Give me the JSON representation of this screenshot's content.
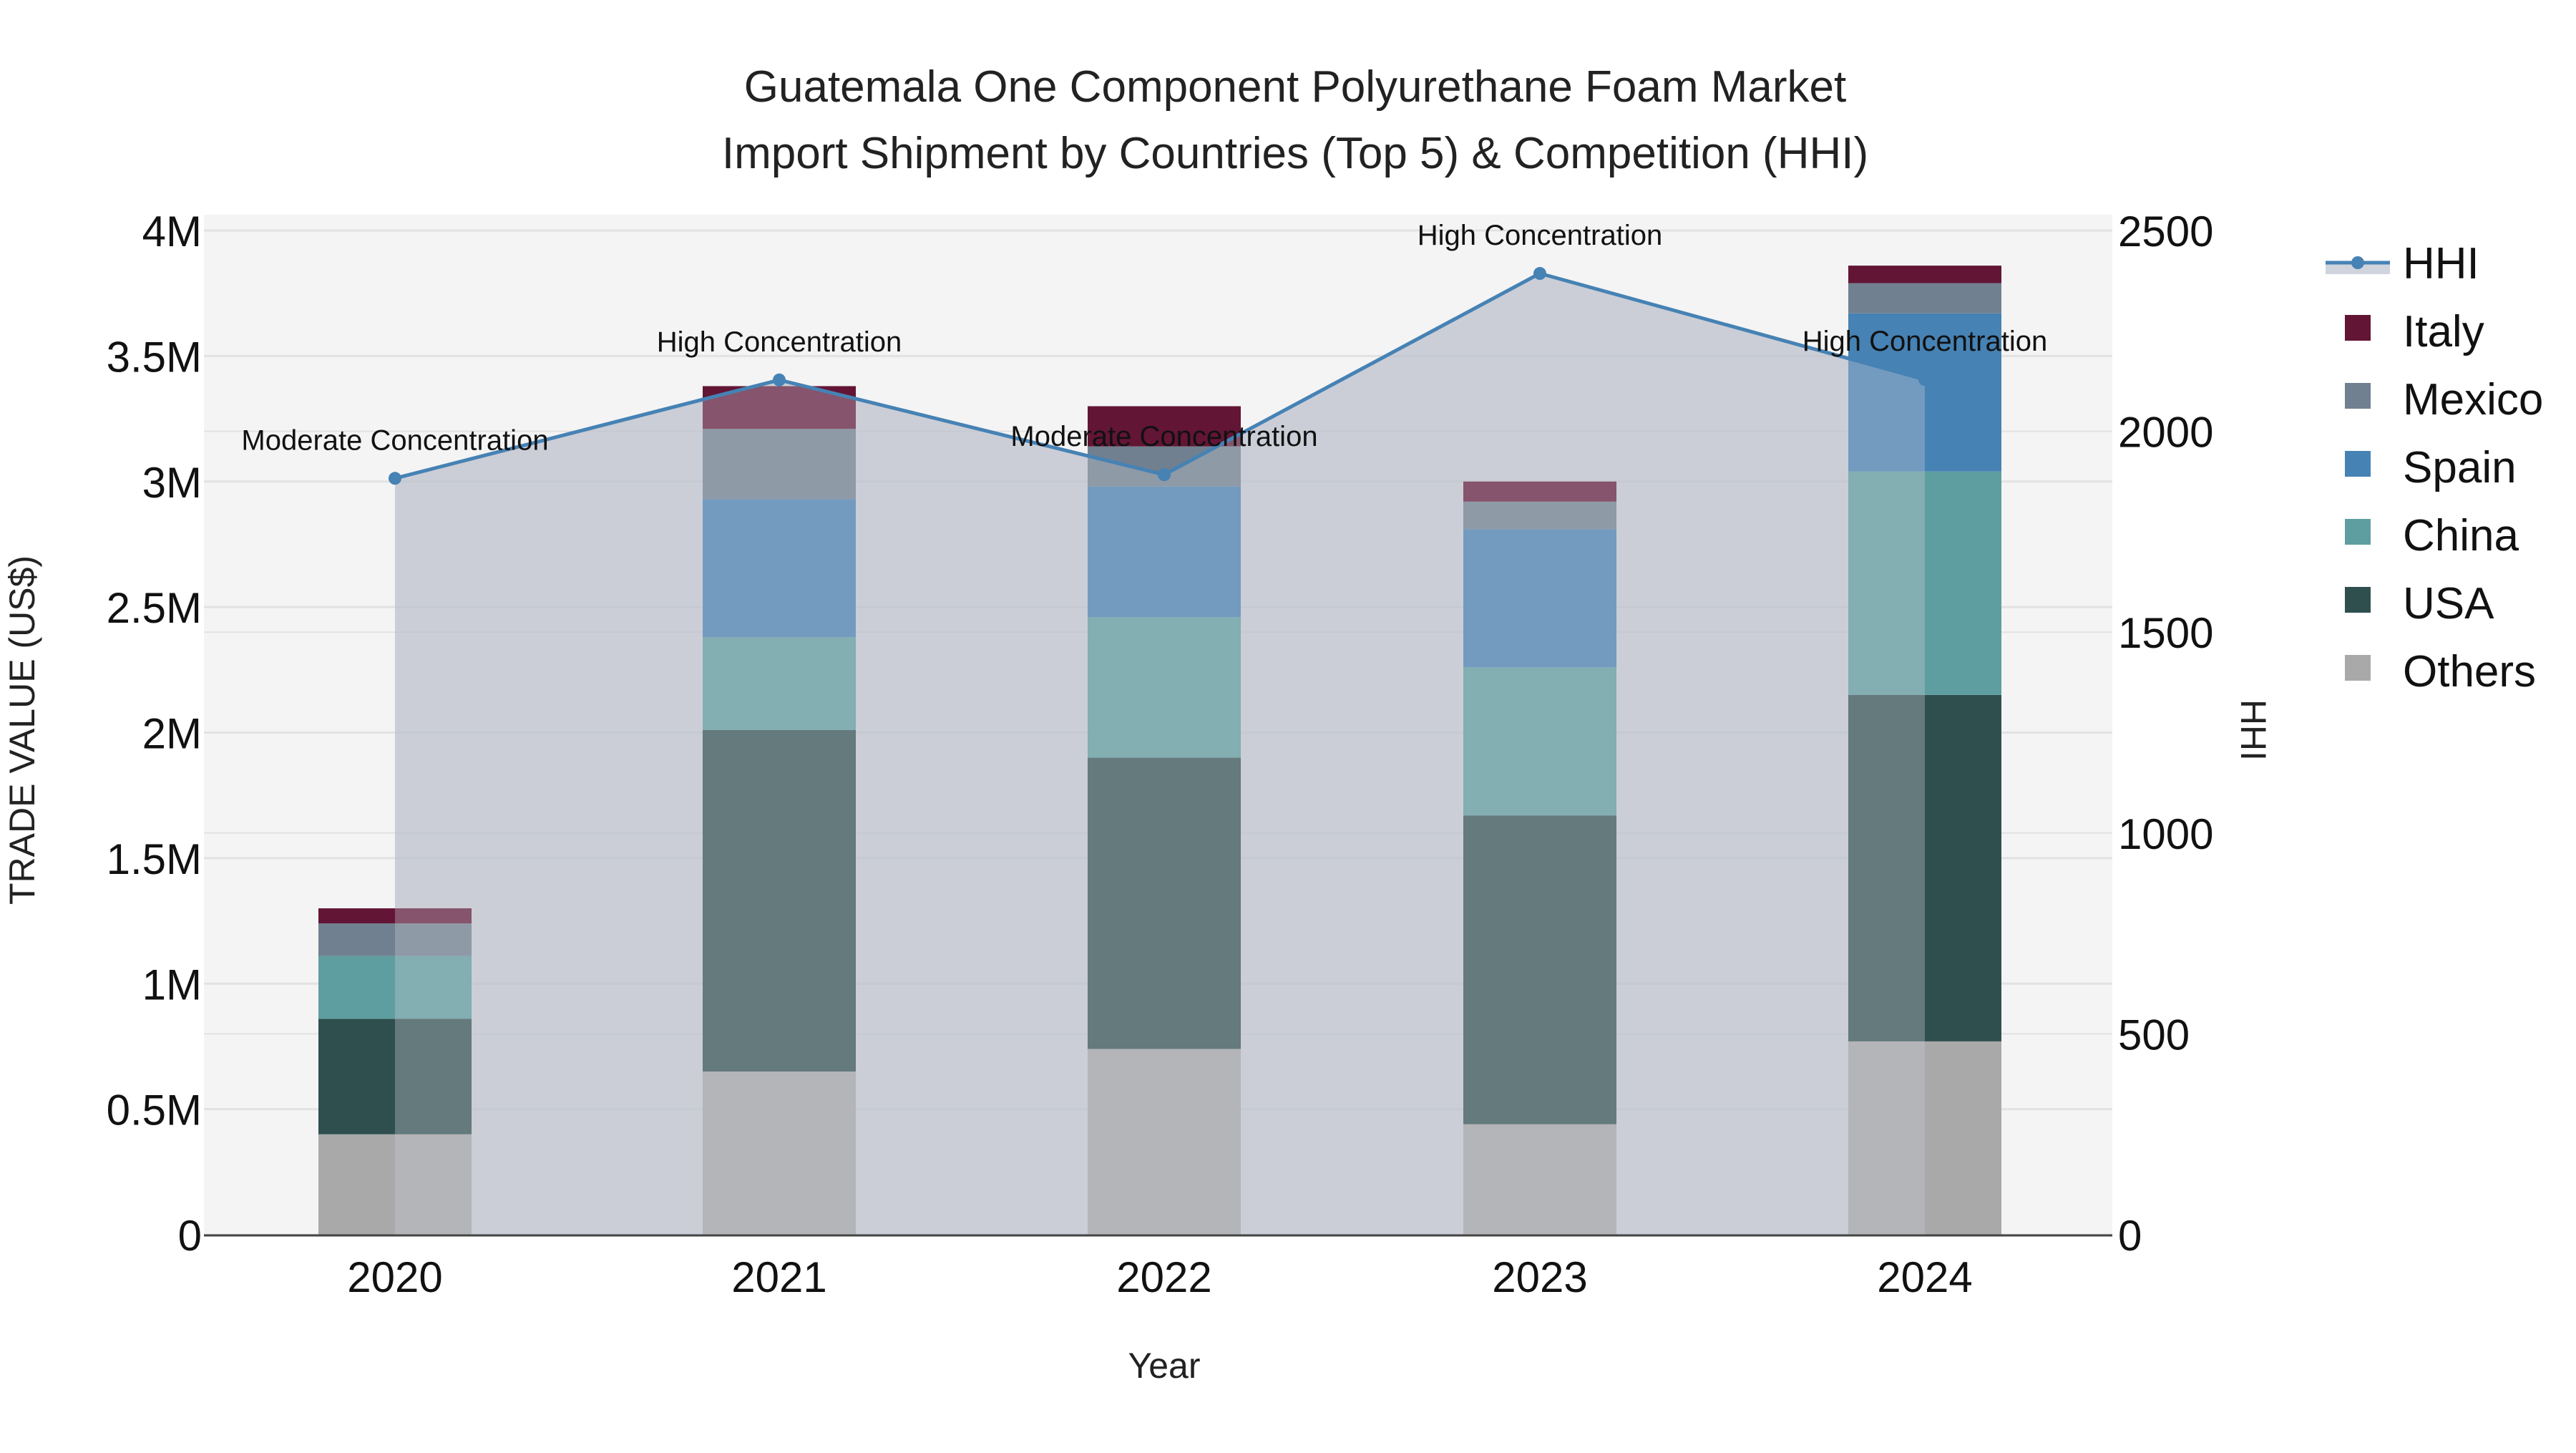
{
  "title": {
    "line1": "Guatemala One Component Polyurethane Foam Market",
    "line2": "Import Shipment by Countries (Top 5) & Competition (HHI)"
  },
  "axes": {
    "x_title": "Year",
    "y_left_title": "TRADE VALUE (US$)",
    "y_right_title": "HHI",
    "y_left_ticks": [
      "0",
      "0.5M",
      "1M",
      "1.5M",
      "2M",
      "2.5M",
      "3M",
      "3.5M",
      "4M"
    ],
    "y_right_ticks": [
      "0",
      "500",
      "1000",
      "1500",
      "2000",
      "2500"
    ],
    "x_ticks": [
      "2020",
      "2021",
      "2022",
      "2023",
      "2024"
    ]
  },
  "legend": {
    "items": [
      {
        "label": "HHI",
        "color": "#4682B4",
        "type": "line"
      },
      {
        "label": "Italy",
        "color": "#631535",
        "type": "box"
      },
      {
        "label": "Mexico",
        "color": "#708090",
        "type": "box"
      },
      {
        "label": "Spain",
        "color": "#4682B4",
        "type": "box"
      },
      {
        "label": "China",
        "color": "#5F9EA0",
        "type": "box"
      },
      {
        "label": "USA",
        "color": "#2F4F4F",
        "type": "box"
      },
      {
        "label": "Others",
        "color": "#A9A9A9",
        "type": "box"
      }
    ]
  },
  "annotations": [
    {
      "year": "2020",
      "text": "Moderate Concentration"
    },
    {
      "year": "2021",
      "text": "High Concentration"
    },
    {
      "year": "2022",
      "text": "Moderate Concentration"
    },
    {
      "year": "2023",
      "text": "High Concentration"
    },
    {
      "year": "2024",
      "text": "High Concentration"
    }
  ],
  "chart_data": {
    "type": "bar",
    "subtype": "stacked bar with line overlay (secondary axis)",
    "title": "Guatemala One Component Polyurethane Foam Market — Import Shipment by Countries (Top 5) & Competition (HHI)",
    "xlabel": "Year",
    "ylabel": "TRADE VALUE (US$)",
    "y2label": "HHI",
    "categories": [
      "2020",
      "2021",
      "2022",
      "2023",
      "2024"
    ],
    "ylim": [
      0,
      4000000
    ],
    "y2lim": [
      0,
      2500
    ],
    "legend_position": "right",
    "grid": true,
    "series": [
      {
        "name": "Others",
        "color": "#A9A9A9",
        "values": [
          400000,
          650000,
          740000,
          440000,
          770000
        ]
      },
      {
        "name": "USA",
        "color": "#2F4F4F",
        "values": [
          460000,
          1360000,
          1160000,
          1230000,
          1380000
        ]
      },
      {
        "name": "China",
        "color": "#5F9EA0",
        "values": [
          250000,
          370000,
          560000,
          590000,
          890000
        ]
      },
      {
        "name": "Spain",
        "color": "#4682B4",
        "values": [
          0,
          550000,
          520000,
          550000,
          630000
        ]
      },
      {
        "name": "Mexico",
        "color": "#708090",
        "values": [
          130000,
          280000,
          160000,
          110000,
          120000
        ]
      },
      {
        "name": "Italy",
        "color": "#631535",
        "values": [
          60000,
          170000,
          160000,
          80000,
          70000
        ]
      }
    ],
    "line_series": {
      "name": "HHI",
      "axis": "y2",
      "color": "#4682B4",
      "values": [
        1883,
        2128,
        1892,
        2393,
        2129
      ],
      "labels": [
        "Moderate Concentration",
        "High Concentration",
        "Moderate Concentration",
        "High Concentration",
        "High Concentration"
      ]
    }
  }
}
